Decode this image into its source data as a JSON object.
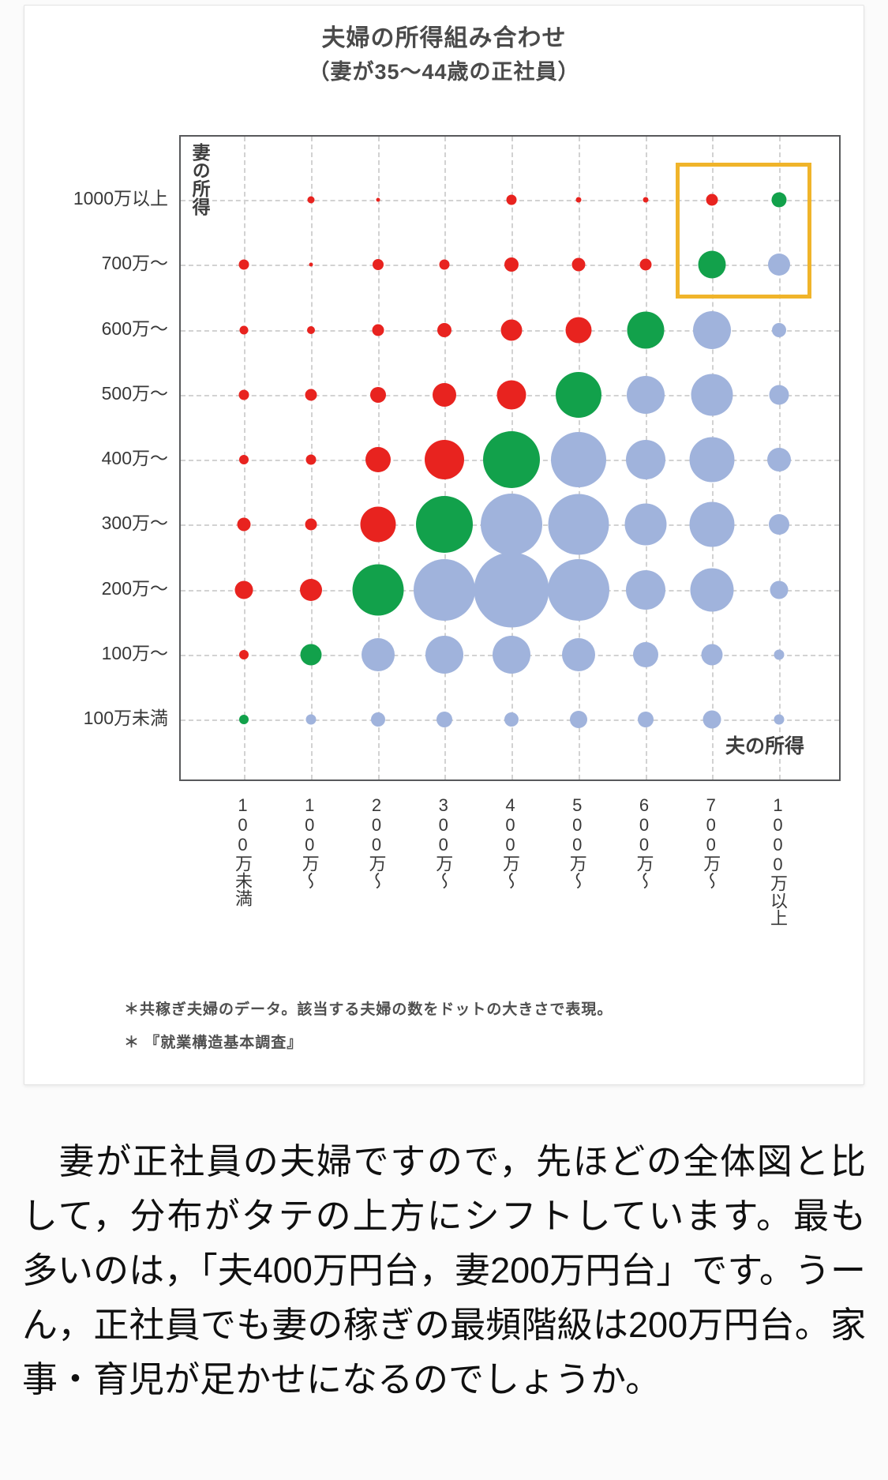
{
  "chart": {
    "title_line1": "夫婦の所得組み合わせ",
    "title_line2": "（妻が35〜44歳の正社員）",
    "y_axis_title": "妻の所得",
    "x_axis_title": "夫の所得",
    "footnote1": "＊共稼ぎ夫婦のデータ。該当する夫婦の数をドットの大きさで表現。",
    "footnote2": "＊ 『就業構造基本調査』"
  },
  "chart_data": {
    "type": "scatter",
    "subtype": "bubble-matrix",
    "title": "夫婦の所得組み合わせ（妻が35〜44歳の正社員）",
    "xlabel": "夫の所得",
    "ylabel": "妻の所得",
    "x_categories": [
      "100万未満",
      "100万〜",
      "200万〜",
      "300万〜",
      "400万〜",
      "500万〜",
      "600万〜",
      "700万〜",
      "1000万以上"
    ],
    "y_categories": [
      "1000万以上",
      "700万〜",
      "600万〜",
      "500万〜",
      "400万〜",
      "300万〜",
      "200万〜",
      "100万〜",
      "100万未満"
    ],
    "y_order": "top-to-bottom",
    "size_encoding": "bubble diameter in px, proportional to number of couples (counts not labeled)",
    "sizes": [
      [
        0,
        9,
        5,
        0,
        13,
        7,
        7,
        15,
        19
      ],
      [
        13,
        5,
        14,
        13,
        18,
        17,
        15,
        35,
        28
      ],
      [
        11,
        10,
        15,
        18,
        27,
        33,
        47,
        48,
        18
      ],
      [
        13,
        15,
        20,
        30,
        37,
        58,
        48,
        53,
        25
      ],
      [
        12,
        13,
        32,
        50,
        72,
        70,
        50,
        57,
        30
      ],
      [
        17,
        15,
        45,
        72,
        78,
        77,
        53,
        57,
        26
      ],
      [
        23,
        28,
        65,
        78,
        95,
        78,
        50,
        55,
        23
      ],
      [
        12,
        27,
        42,
        48,
        48,
        42,
        32,
        27,
        13
      ],
      [
        12,
        13,
        18,
        20,
        18,
        22,
        20,
        23,
        13
      ]
    ],
    "palette": {
      "diagonal_same_bracket": "#12a14b",
      "above_diagonal_husband_lower": "#e8231f",
      "below_diagonal_husband_higher": "#a0b3dc"
    },
    "grid": "dashed light gray, both axes",
    "highlight_box": {
      "color": "#f0b42a",
      "x_categories": [
        "700万〜",
        "1000万以上"
      ],
      "y_categories": [
        "1000万以上",
        "700万〜"
      ]
    },
    "largest_cell": {
      "x": "400万〜",
      "y": "200万〜"
    }
  },
  "body": {
    "paragraph": "　妻が正社員の夫婦ですので，先ほどの全体図と比して，分布がタテの上方にシフトしています。最も多いのは，「夫400万円台，妻200万円台」です。うーん，正社員でも妻の稼ぎの最頻階級は200万円台。家事・育児が足かせになるのでしょうか。"
  }
}
